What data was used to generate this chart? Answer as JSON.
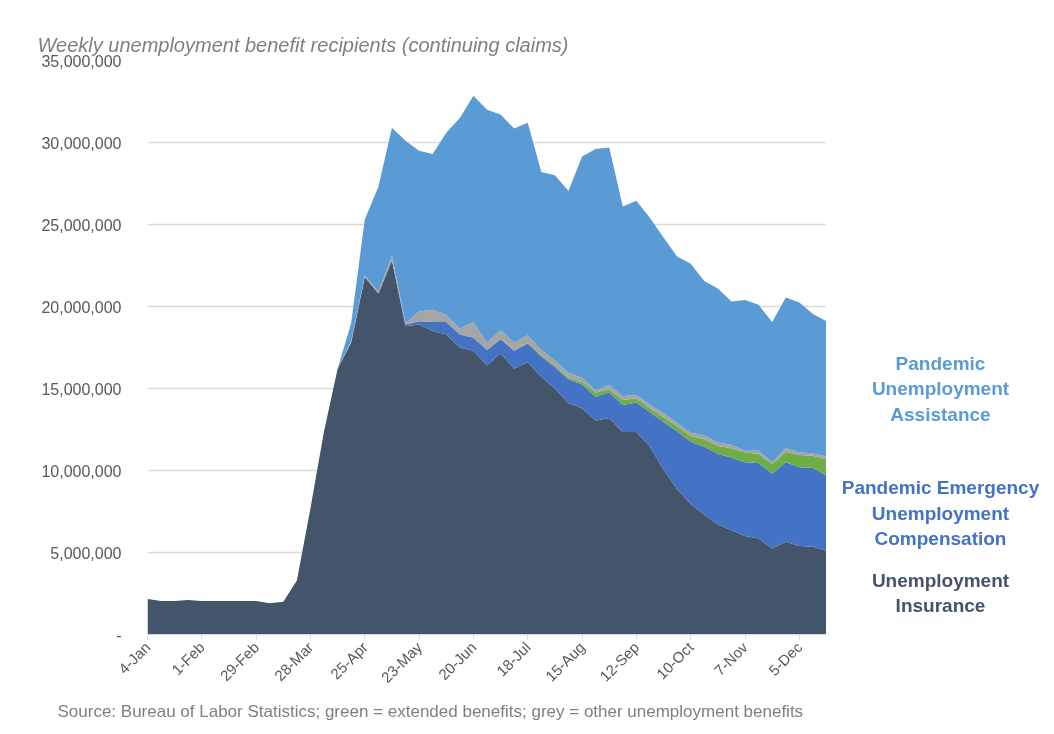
{
  "chart_data": {
    "type": "area",
    "stacked": true,
    "title": "Weekly unemployment benefit recipients (continuing claims)",
    "categories": [
      "4-Jan",
      null,
      null,
      null,
      "1-Feb",
      null,
      null,
      null,
      "29-Feb",
      null,
      null,
      null,
      "28-Mar",
      null,
      null,
      null,
      "25-Apr",
      null,
      null,
      null,
      "23-May",
      null,
      null,
      null,
      "20-Jun",
      null,
      null,
      null,
      "18-Jul",
      null,
      null,
      null,
      "15-Aug",
      null,
      null,
      null,
      "12-Sep",
      null,
      null,
      null,
      "10-Oct",
      null,
      null,
      null,
      "7-Nov",
      null,
      null,
      null,
      "5-Dec",
      null,
      null
    ],
    "series": [
      {
        "name": "Unemployment Insurance",
        "color": "#44546a",
        "values": [
          2170000,
          2050000,
          2050000,
          2100000,
          2050000,
          2050000,
          2050000,
          2050000,
          2050000,
          1900000,
          2000000,
          3300000,
          7700000,
          12400000,
          16200000,
          17800000,
          21800000,
          20800000,
          22800000,
          18800000,
          18900000,
          18500000,
          18300000,
          17500000,
          17300000,
          16400000,
          17150000,
          16200000,
          16600000,
          15700000,
          15000000,
          14100000,
          13800000,
          13050000,
          13200000,
          12350000,
          12350000,
          11450000,
          10050000,
          8850000,
          7950000,
          7300000,
          6700000,
          6350000,
          6000000,
          5850000,
          5250000,
          5650000,
          5400000,
          5350000,
          5100000
        ]
      },
      {
        "name": "Pandemic Emergency Unemployment Compensation",
        "color": "#4472c4",
        "values": [
          null,
          null,
          null,
          null,
          null,
          null,
          null,
          null,
          null,
          null,
          null,
          null,
          null,
          null,
          null,
          null,
          null,
          null,
          0,
          100000,
          200000,
          550000,
          750000,
          800000,
          800000,
          950000,
          850000,
          1100000,
          1150000,
          1250000,
          1300000,
          1450000,
          1450000,
          1450000,
          1550000,
          1650000,
          1800000,
          2100000,
          2900000,
          3550000,
          3800000,
          4150000,
          4300000,
          4450000,
          4500000,
          4600000,
          4550000,
          4850000,
          4800000,
          4800000,
          4600000
        ]
      },
      {
        "color": "#70ad47",
        "values": [
          null,
          null,
          null,
          null,
          null,
          null,
          null,
          null,
          null,
          null,
          null,
          null,
          null,
          null,
          null,
          null,
          null,
          null,
          null,
          null,
          null,
          null,
          null,
          null,
          null,
          0,
          50000,
          50000,
          50000,
          100000,
          100000,
          100000,
          150000,
          250000,
          200000,
          300000,
          250000,
          250000,
          300000,
          300000,
          350000,
          450000,
          500000,
          550000,
          600000,
          550000,
          600000,
          650000,
          750000,
          750000,
          1000000
        ]
      },
      {
        "color": "#a5a5a5",
        "values": [
          null,
          null,
          null,
          null,
          null,
          null,
          null,
          null,
          null,
          null,
          null,
          null,
          null,
          null,
          0,
          100000,
          100000,
          100000,
          300000,
          100000,
          600000,
          750000,
          450000,
          350000,
          950000,
          450000,
          500000,
          450000,
          450000,
          300000,
          300000,
          300000,
          250000,
          150000,
          250000,
          250000,
          200000,
          200000,
          250000,
          200000,
          200000,
          250000,
          200000,
          200000,
          100000,
          200000,
          100000,
          200000,
          150000,
          150000,
          150000
        ]
      },
      {
        "name": "Pandemic Unemployment Assistance",
        "color": "#5b9bd5",
        "values": [
          null,
          null,
          null,
          null,
          null,
          null,
          null,
          null,
          null,
          null,
          null,
          null,
          null,
          null,
          0,
          1100000,
          3400000,
          6400000,
          7800000,
          11100000,
          9800000,
          9500000,
          11100000,
          12850000,
          13800000,
          14200000,
          13150000,
          13050000,
          12950000,
          10850000,
          11300000,
          11100000,
          13500000,
          14700000,
          14500000,
          11550000,
          11850000,
          11400000,
          10700000,
          10150000,
          10300000,
          9400000,
          9400000,
          8750000,
          9200000,
          8900000,
          8550000,
          9200000,
          9150000,
          8500000,
          8250000
        ]
      }
    ],
    "ylim": [
      0,
      35000000
    ],
    "yticks": [
      {
        "value": 0,
        "label": "-"
      },
      {
        "value": 5000000,
        "label": "5,000,000"
      },
      {
        "value": 10000000,
        "label": "10,000,000"
      },
      {
        "value": 15000000,
        "label": "15,000,000"
      },
      {
        "value": 20000000,
        "label": "20,000,000"
      },
      {
        "value": 25000000,
        "label": "25,000,000"
      },
      {
        "value": 30000000,
        "label": "30,000,000"
      },
      {
        "value": 35000000,
        "label": "35,000,000"
      }
    ],
    "grid": "y",
    "legend": false,
    "annotations": [
      "Source: Bureau of Labor Statistics; green = extended benefits; grey = other unemployment benefits"
    ]
  }
}
